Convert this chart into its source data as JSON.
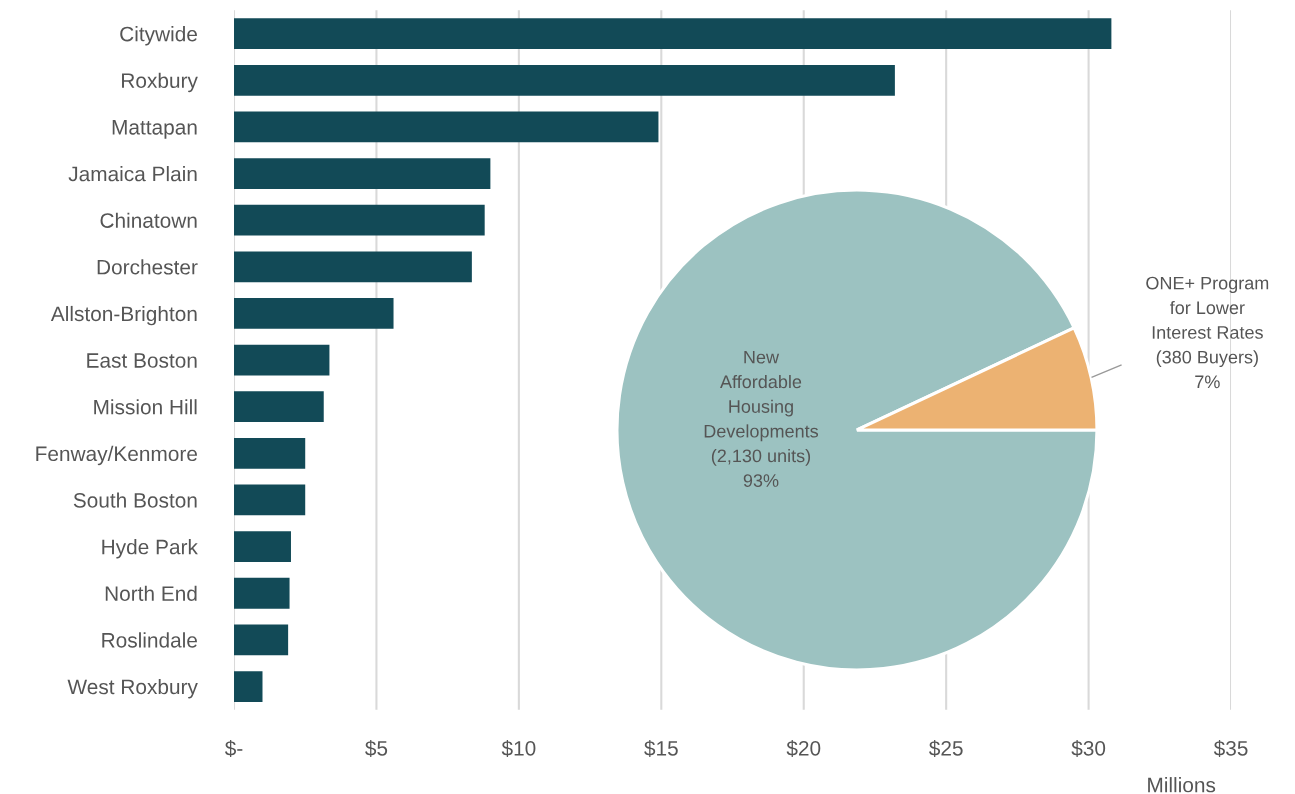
{
  "chart_data": [
    {
      "type": "bar",
      "orientation": "horizontal",
      "categories": [
        "Citywide",
        "Roxbury",
        "Mattapan",
        "Jamaica Plain",
        "Chinatown",
        "Dorchester",
        "Allston-Brighton",
        "East Boston",
        "Mission Hill",
        "Fenway/Kenmore",
        "South Boston",
        "Hyde Park",
        "North End",
        "Roslindale",
        "West Roxbury"
      ],
      "values": [
        30.8,
        23.2,
        14.9,
        9.0,
        8.8,
        8.35,
        5.6,
        3.35,
        3.15,
        2.5,
        2.5,
        2.0,
        1.95,
        1.9,
        1.0
      ],
      "color": "#124a57",
      "xlabel": "Millions",
      "xlim": [
        0,
        35
      ],
      "xticks": [
        {
          "value": 0,
          "label": "$-"
        },
        {
          "value": 5,
          "label": "$5"
        },
        {
          "value": 10,
          "label": "$10"
        },
        {
          "value": 15,
          "label": "$15"
        },
        {
          "value": 20,
          "label": "$20"
        },
        {
          "value": 25,
          "label": "$25"
        },
        {
          "value": 30,
          "label": "$30"
        },
        {
          "value": 35,
          "label": "$35"
        }
      ],
      "grid": "x",
      "legend": false
    },
    {
      "type": "pie",
      "categories": [
        "New\nAffordable\nHousing\nDevelopments\n(2,130 units)",
        "ONE+ Program\nfor Lower\nInterest Rates\n(380 Buyers)"
      ],
      "values": [
        93,
        7
      ],
      "value_labels": [
        "93%",
        "7%"
      ],
      "colors": [
        "#9cc2c1",
        "#ecb272"
      ]
    }
  ]
}
